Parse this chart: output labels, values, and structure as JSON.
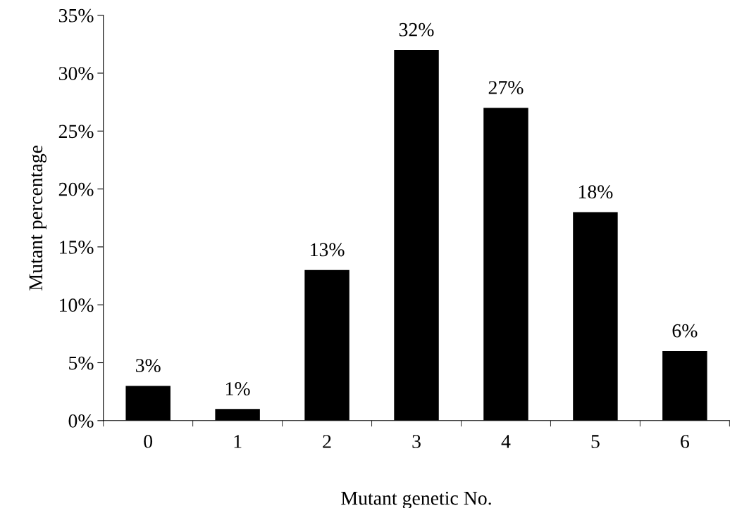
{
  "chart_data": {
    "type": "bar",
    "xlabel": "Mutant genetic No.",
    "ylabel": "Mutant percentage",
    "categories": [
      "0",
      "1",
      "2",
      "3",
      "4",
      "5",
      "6"
    ],
    "values": [
      3,
      1,
      13,
      32,
      27,
      18,
      6
    ],
    "value_labels": [
      "3%",
      "1%",
      "13%",
      "32%",
      "27%",
      "18%",
      "6%"
    ],
    "color": "#000000",
    "ylim": [
      0,
      35
    ],
    "yticks": [
      {
        "value": 0,
        "label": "0%"
      },
      {
        "value": 5,
        "label": "5%"
      },
      {
        "value": 10,
        "label": "10%"
      },
      {
        "value": 15,
        "label": "15%"
      },
      {
        "value": 20,
        "label": "20%"
      },
      {
        "value": 25,
        "label": "25%"
      },
      {
        "value": 30,
        "label": "30%"
      },
      {
        "value": 35,
        "label": "35%"
      }
    ],
    "grid": false,
    "legend": false
  }
}
